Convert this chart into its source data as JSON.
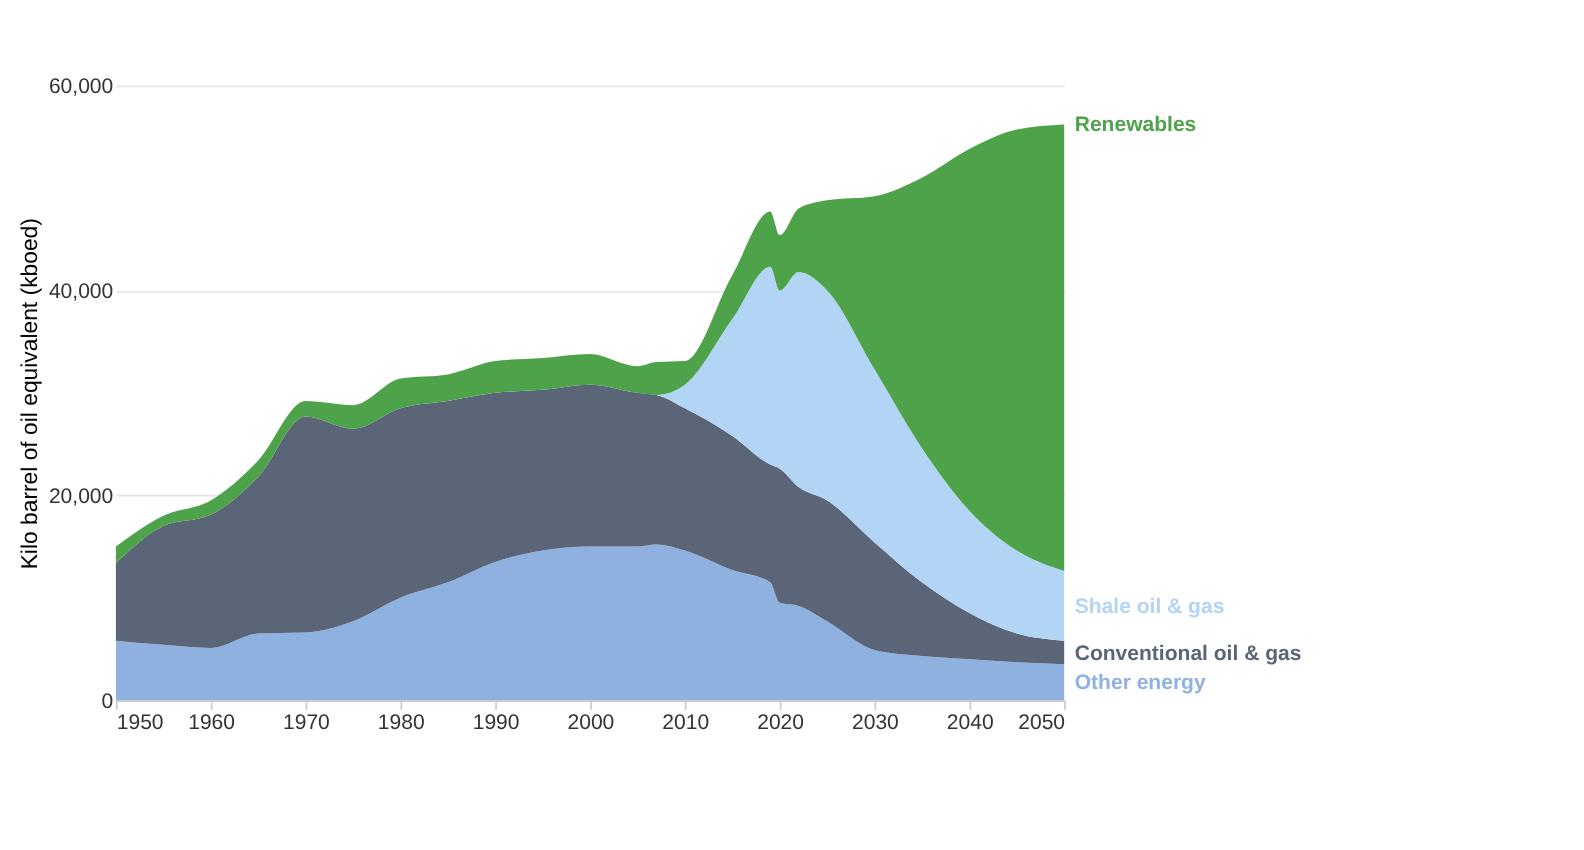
{
  "chart_data": {
    "type": "area",
    "stacked": true,
    "ylabel": "Kilo barrel of oil equivalent (kboed)",
    "x": [
      1950,
      1955,
      1960,
      1965,
      1970,
      1975,
      1980,
      1985,
      1990,
      1995,
      2000,
      2005,
      2007,
      2010,
      2015,
      2019,
      2020,
      2022,
      2025,
      2030,
      2035,
      2040,
      2045,
      2050
    ],
    "series": [
      {
        "name": "Other energy",
        "color": "#8fb1e0",
        "values": [
          5800,
          5400,
          5100,
          6500,
          6600,
          7700,
          10000,
          11500,
          13500,
          14600,
          15000,
          15000,
          15200,
          14600,
          12700,
          11500,
          9500,
          9200,
          7700,
          4900,
          4300,
          4000,
          3700,
          3500
        ]
      },
      {
        "name": "Conventional oil & gas",
        "color": "#5a6577",
        "values": [
          7600,
          11600,
          13000,
          15300,
          21100,
          18800,
          18500,
          17700,
          16500,
          15700,
          15800,
          15000,
          14600,
          13900,
          13100,
          11500,
          13100,
          11600,
          11800,
          10500,
          7200,
          4500,
          2800,
          2300
        ]
      },
      {
        "name": "Shale oil & gas",
        "color": "#b2d4f5",
        "values": [
          0,
          0,
          0,
          0,
          0,
          0,
          0,
          0,
          0,
          0,
          0,
          0,
          0,
          2300,
          11400,
          19300,
          17400,
          21000,
          20500,
          16900,
          13100,
          10000,
          8100,
          6800
        ]
      },
      {
        "name": "Renewables",
        "color": "#4ea34a",
        "values": [
          1600,
          1000,
          1400,
          1600,
          1500,
          2300,
          2900,
          2600,
          3100,
          3100,
          3000,
          2600,
          3200,
          2300,
          4300,
          5400,
          5400,
          6200,
          8800,
          16900,
          26400,
          35300,
          41100,
          43600
        ]
      }
    ],
    "xlim": [
      1950,
      2050
    ],
    "xticks": [
      1950,
      1960,
      1970,
      1980,
      1990,
      2000,
      2010,
      2020,
      2030,
      2040,
      2050
    ],
    "ylim": [
      0,
      60000
    ],
    "yticks": [
      {
        "value": 0,
        "label": "0"
      },
      {
        "value": 20000,
        "label": "20,000"
      },
      {
        "value": 40000,
        "label": "40,000"
      },
      {
        "value": 60000,
        "label": "60,000"
      }
    ],
    "grid": "y",
    "legend": false
  }
}
